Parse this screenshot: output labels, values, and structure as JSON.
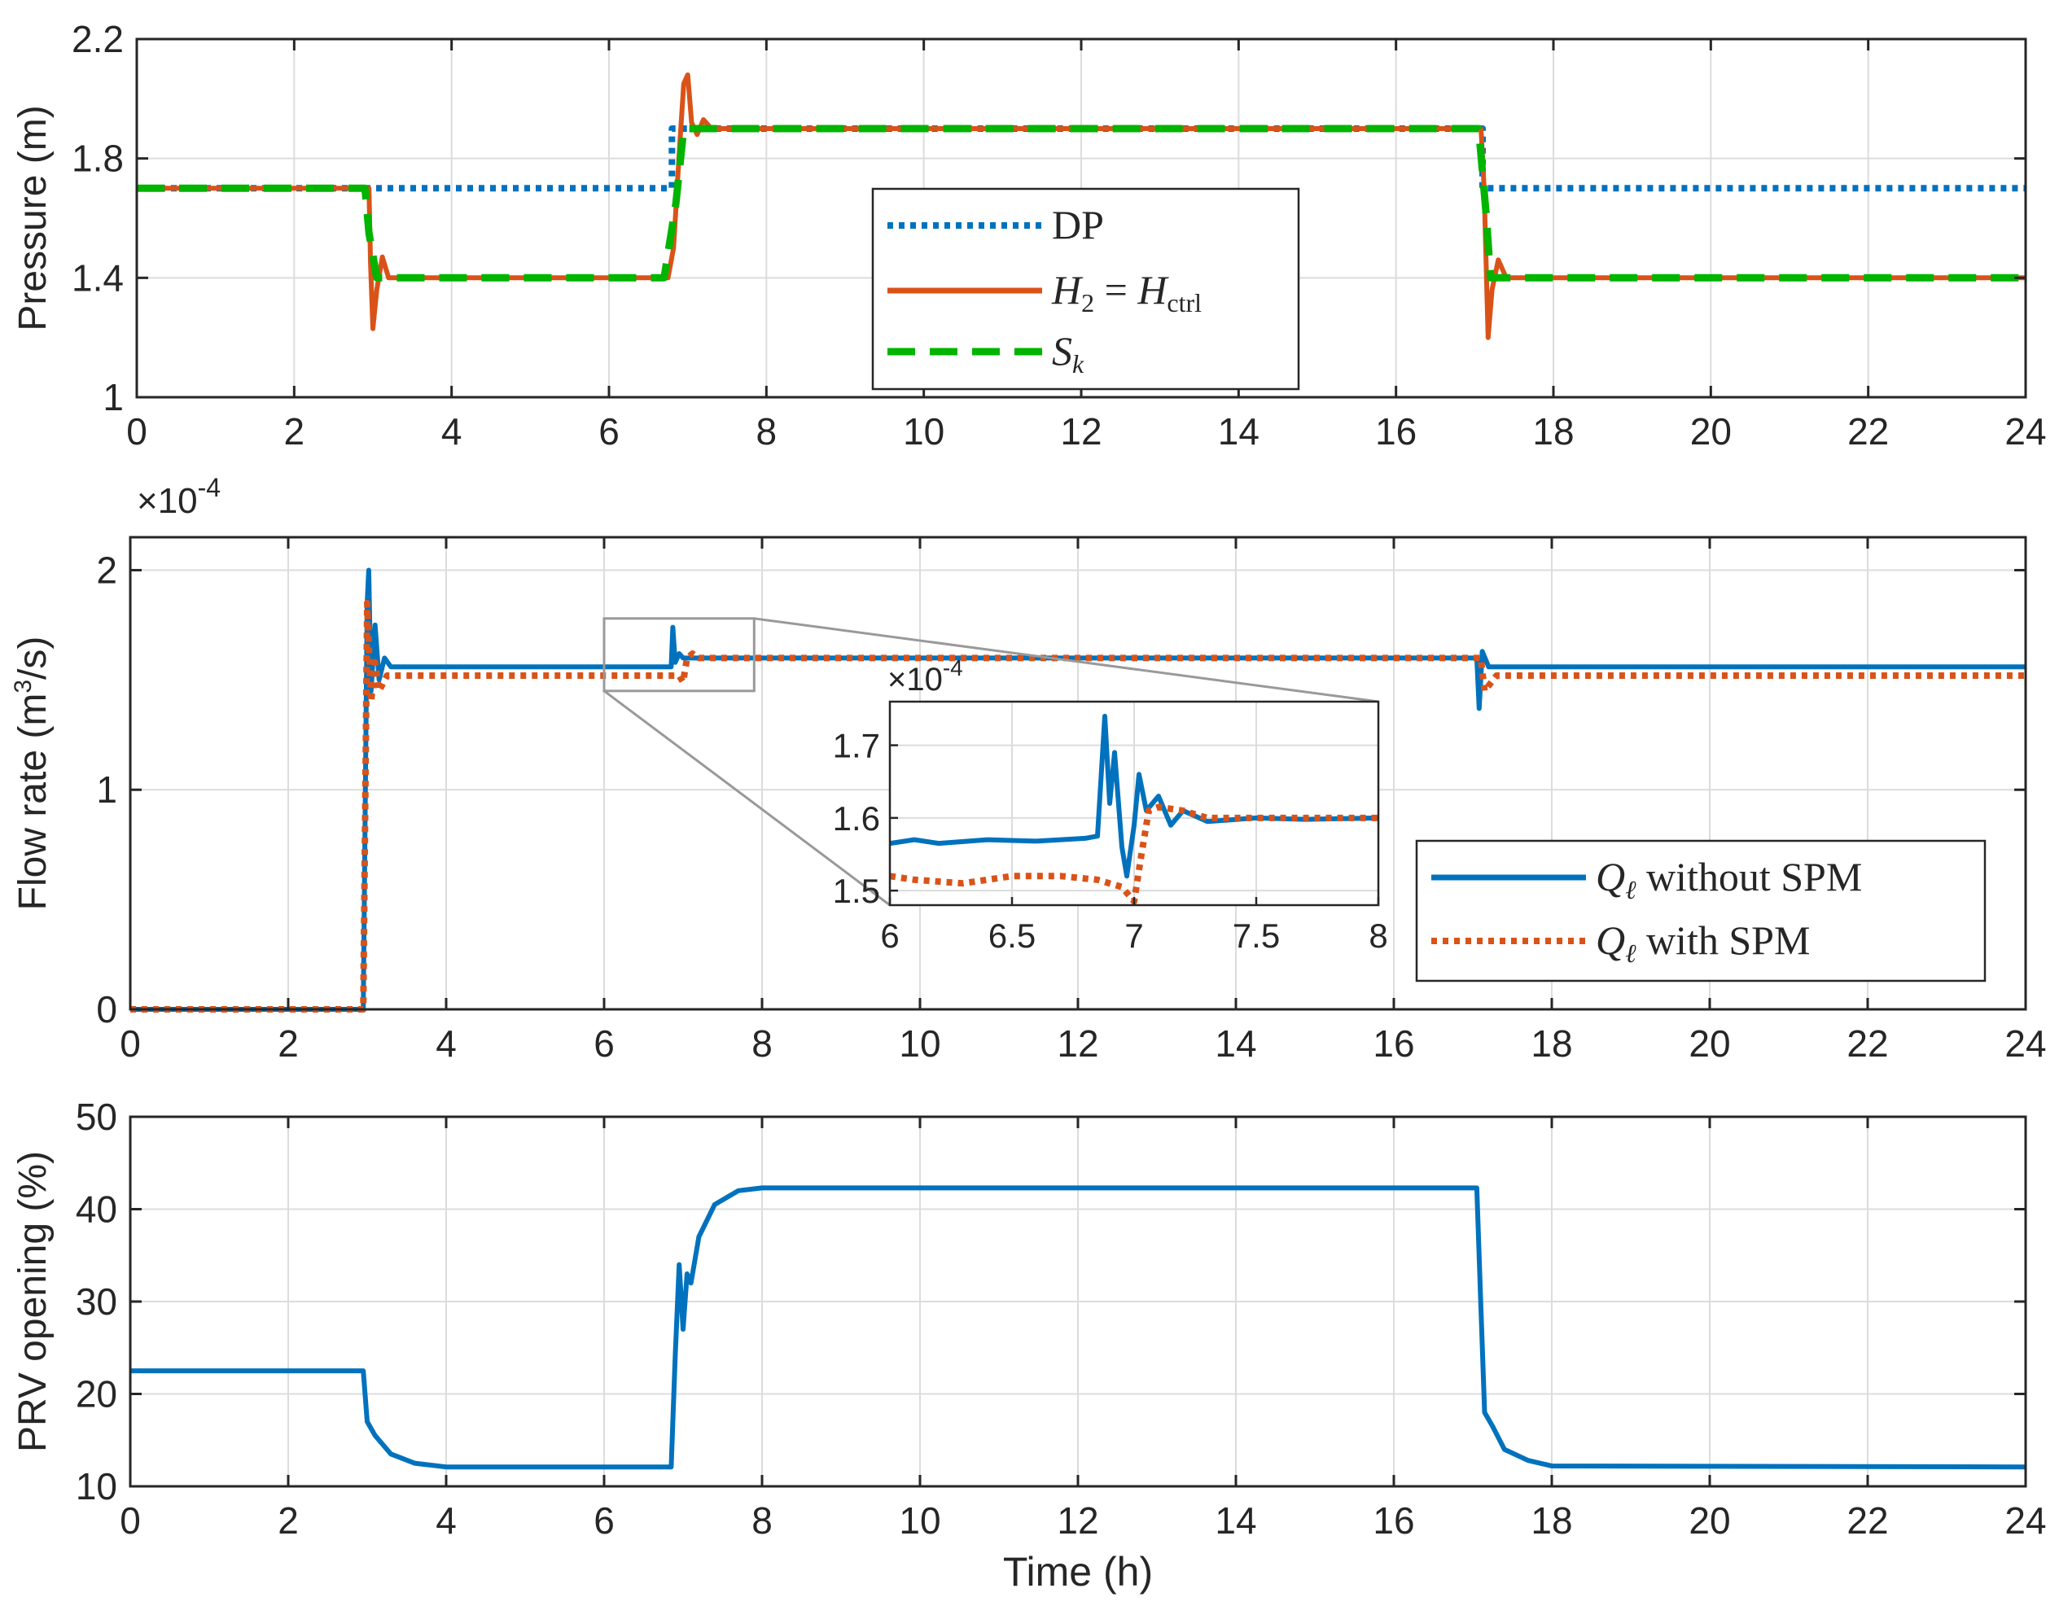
{
  "chart_data": [
    {
      "type": "line",
      "id": "pressure",
      "ylabel": "Pressure (m)",
      "xlabel": "",
      "xlim": [
        0,
        24
      ],
      "ylim": [
        1,
        2.2
      ],
      "xticks": [
        "0",
        "2",
        "4",
        "6",
        "8",
        "10",
        "12",
        "14",
        "16",
        "18",
        "20",
        "22",
        "24"
      ],
      "yticks": [
        "1",
        "1.4",
        "1.8",
        "2.2"
      ],
      "ytick_values": [
        1,
        1.4,
        1.8,
        2.2
      ],
      "grid": true,
      "legend": {
        "placement": "center",
        "entries": [
          {
            "text": "DP"
          },
          {
            "sym_h": "H",
            "sub2": "2",
            "eq": " = ",
            "sym_h2": "H",
            "sub_ctrl": "ctrl"
          },
          {
            "sym_s": "S",
            "sub_k": "k"
          }
        ]
      },
      "series": [
        {
          "name": "DP",
          "color": "#0072BD",
          "style": "dotted",
          "points": [
            [
              0,
              1.7
            ],
            [
              6.8,
              1.7
            ],
            [
              6.8,
              1.9
            ],
            [
              17.1,
              1.9
            ],
            [
              17.1,
              1.7
            ],
            [
              24,
              1.7
            ]
          ]
        },
        {
          "name": "H2 = Hctrl",
          "color": "#D95319",
          "style": "solid",
          "points": [
            [
              0,
              1.7
            ],
            [
              2.95,
              1.7
            ],
            [
              2.97,
              1.45
            ],
            [
              3.0,
              1.23
            ],
            [
              3.05,
              1.36
            ],
            [
              3.12,
              1.47
            ],
            [
              3.2,
              1.4
            ],
            [
              6.75,
              1.4
            ],
            [
              6.82,
              1.5
            ],
            [
              6.9,
              1.85
            ],
            [
              6.95,
              2.05
            ],
            [
              7.0,
              2.08
            ],
            [
              7.05,
              1.92
            ],
            [
              7.12,
              1.88
            ],
            [
              7.2,
              1.93
            ],
            [
              7.3,
              1.9
            ],
            [
              17.08,
              1.9
            ],
            [
              17.12,
              1.7
            ],
            [
              17.17,
              1.2
            ],
            [
              17.22,
              1.36
            ],
            [
              17.3,
              1.46
            ],
            [
              17.4,
              1.4
            ],
            [
              24,
              1.4
            ]
          ]
        },
        {
          "name": "Sk",
          "color": "#00B400",
          "style": "dashed",
          "points": [
            [
              0,
              1.7
            ],
            [
              2.9,
              1.7
            ],
            [
              2.95,
              1.55
            ],
            [
              3.05,
              1.4
            ],
            [
              6.7,
              1.4
            ],
            [
              6.85,
              1.65
            ],
            [
              6.95,
              1.9
            ],
            [
              17.05,
              1.9
            ],
            [
              17.15,
              1.6
            ],
            [
              17.2,
              1.4
            ],
            [
              24,
              1.4
            ]
          ]
        }
      ]
    },
    {
      "type": "line",
      "id": "flow",
      "ylabel": "Flow rate (m",
      "ylabel_sup": "3",
      "ylabel_tail": "/s)",
      "exponent_base": "×10",
      "exponent_power": "-4",
      "xlim": [
        0,
        24
      ],
      "ylim": [
        0,
        2.15
      ],
      "xticks": [
        "0",
        "2",
        "4",
        "6",
        "8",
        "10",
        "12",
        "14",
        "16",
        "18",
        "20",
        "22",
        "24"
      ],
      "yticks": [
        "0",
        "1",
        "2"
      ],
      "ytick_values": [
        0,
        1,
        2
      ],
      "grid": true,
      "legend": {
        "placement": "bottom-right",
        "entries": [
          {
            "sym": "Q",
            "sub": "ℓ",
            "rest": " without SPM"
          },
          {
            "sym": "Q",
            "sub": "ℓ",
            "rest": " with SPM"
          }
        ]
      },
      "series": [
        {
          "name": "Q without SPM",
          "color": "#0072BD",
          "style": "solid",
          "points": [
            [
              0,
              0
            ],
            [
              2.95,
              0
            ],
            [
              3.0,
              1.85
            ],
            [
              3.02,
              2.0
            ],
            [
              3.05,
              1.45
            ],
            [
              3.1,
              1.75
            ],
            [
              3.15,
              1.5
            ],
            [
              3.22,
              1.6
            ],
            [
              3.3,
              1.56
            ],
            [
              6.85,
              1.56
            ],
            [
              6.87,
              1.74
            ],
            [
              6.9,
              1.58
            ],
            [
              6.95,
              1.62
            ],
            [
              7.0,
              1.6
            ],
            [
              17.05,
              1.6
            ],
            [
              17.08,
              1.37
            ],
            [
              17.12,
              1.63
            ],
            [
              17.2,
              1.56
            ],
            [
              24,
              1.56
            ]
          ]
        },
        {
          "name": "Q with SPM",
          "color": "#D95319",
          "style": "dotted",
          "points": [
            [
              0,
              0
            ],
            [
              2.95,
              0
            ],
            [
              3.0,
              1.85
            ],
            [
              3.05,
              1.4
            ],
            [
              3.1,
              1.58
            ],
            [
              3.15,
              1.45
            ],
            [
              3.25,
              1.52
            ],
            [
              6.95,
              1.52
            ],
            [
              7.0,
              1.49
            ],
            [
              7.05,
              1.6
            ],
            [
              7.12,
              1.62
            ],
            [
              7.2,
              1.6
            ],
            [
              17.1,
              1.6
            ],
            [
              17.15,
              1.45
            ],
            [
              17.3,
              1.52
            ],
            [
              24,
              1.52
            ]
          ]
        }
      ],
      "inset": {
        "xlim": [
          6,
          8
        ],
        "ylim": [
          1.48,
          1.76
        ],
        "xticks": [
          "6",
          "6.5",
          "7",
          "7.5",
          "8"
        ],
        "xtick_values": [
          6,
          6.5,
          7,
          7.5,
          8
        ],
        "yticks": [
          "1.5",
          "1.6",
          "1.7"
        ],
        "ytick_values": [
          1.5,
          1.6,
          1.7
        ],
        "exponent_base": "×10",
        "exponent_power": "-4",
        "zoom_box": {
          "x": [
            6,
            7.9
          ],
          "y": [
            1.45,
            1.78
          ]
        },
        "series": [
          {
            "name": "Q without SPM",
            "color": "#0072BD",
            "style": "solid",
            "points": [
              [
                6,
                1.565
              ],
              [
                6.1,
                1.57
              ],
              [
                6.2,
                1.565
              ],
              [
                6.4,
                1.57
              ],
              [
                6.6,
                1.568
              ],
              [
                6.8,
                1.572
              ],
              [
                6.85,
                1.575
              ],
              [
                6.88,
                1.74
              ],
              [
                6.9,
                1.62
              ],
              [
                6.92,
                1.69
              ],
              [
                6.95,
                1.56
              ],
              [
                6.97,
                1.52
              ],
              [
                7.0,
                1.59
              ],
              [
                7.02,
                1.66
              ],
              [
                7.05,
                1.61
              ],
              [
                7.1,
                1.63
              ],
              [
                7.15,
                1.59
              ],
              [
                7.2,
                1.61
              ],
              [
                7.3,
                1.595
              ],
              [
                7.5,
                1.6
              ],
              [
                7.7,
                1.598
              ],
              [
                8,
                1.6
              ]
            ]
          },
          {
            "name": "Q with SPM",
            "color": "#D95319",
            "style": "dotted",
            "points": [
              [
                6,
                1.52
              ],
              [
                6.1,
                1.515
              ],
              [
                6.3,
                1.51
              ],
              [
                6.5,
                1.52
              ],
              [
                6.7,
                1.52
              ],
              [
                6.85,
                1.515
              ],
              [
                6.95,
                1.505
              ],
              [
                7.0,
                1.485
              ],
              [
                7.03,
                1.55
              ],
              [
                7.06,
                1.61
              ],
              [
                7.1,
                1.615
              ],
              [
                7.2,
                1.61
              ],
              [
                7.3,
                1.6
              ],
              [
                7.5,
                1.6
              ],
              [
                7.7,
                1.6
              ],
              [
                8,
                1.6
              ]
            ]
          }
        ]
      }
    },
    {
      "type": "line",
      "id": "prv",
      "ylabel": "PRV opening (%)",
      "xlabel": "Time (h)",
      "xlim": [
        0,
        24
      ],
      "ylim": [
        10,
        50
      ],
      "xticks": [
        "0",
        "2",
        "4",
        "6",
        "8",
        "10",
        "12",
        "14",
        "16",
        "18",
        "20",
        "22",
        "24"
      ],
      "yticks": [
        "10",
        "20",
        "30",
        "40",
        "50"
      ],
      "ytick_values": [
        10,
        20,
        30,
        40,
        50
      ],
      "grid": true,
      "series": [
        {
          "name": "PRV opening",
          "color": "#0072BD",
          "style": "solid",
          "points": [
            [
              0,
              22.5
            ],
            [
              2.95,
              22.5
            ],
            [
              3.0,
              17
            ],
            [
              3.1,
              15.5
            ],
            [
              3.3,
              13.5
            ],
            [
              3.6,
              12.5
            ],
            [
              4.0,
              12.1
            ],
            [
              6.85,
              12.1
            ],
            [
              6.9,
              24
            ],
            [
              6.95,
              34
            ],
            [
              7.0,
              27
            ],
            [
              7.05,
              33
            ],
            [
              7.1,
              32
            ],
            [
              7.2,
              37
            ],
            [
              7.4,
              40.5
            ],
            [
              7.7,
              42
            ],
            [
              8.0,
              42.3
            ],
            [
              17.05,
              42.3
            ],
            [
              17.1,
              30
            ],
            [
              17.15,
              18
            ],
            [
              17.25,
              16.5
            ],
            [
              17.4,
              14
            ],
            [
              17.7,
              12.8
            ],
            [
              18.0,
              12.2
            ],
            [
              24,
              12.1
            ]
          ]
        }
      ]
    }
  ]
}
